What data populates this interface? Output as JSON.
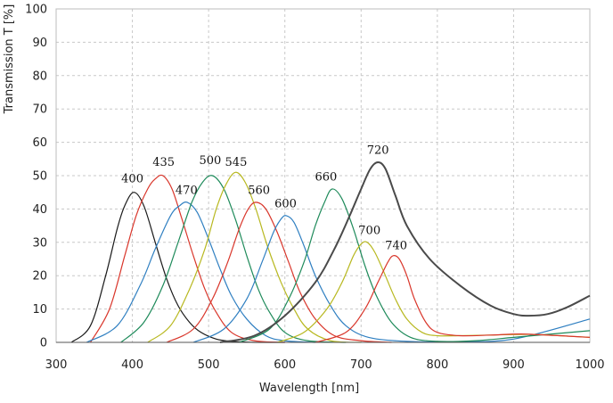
{
  "chart_data": {
    "type": "line",
    "title": "",
    "xlabel": "Wavelength [nm]",
    "ylabel": "Transmission T [%]",
    "xlim": [
      300,
      1000
    ],
    "ylim": [
      0,
      100
    ],
    "xticks": [
      300,
      400,
      500,
      600,
      700,
      800,
      900,
      1000
    ],
    "yticks": [
      0,
      10,
      20,
      30,
      40,
      50,
      60,
      70,
      80,
      90,
      100
    ],
    "grid": true,
    "legend": "none",
    "series": [
      {
        "name": "400",
        "color": "#1a1a1a",
        "width": 1.2,
        "x": [
          320,
          345,
          365,
          380,
          390,
          402,
          415,
          430,
          445,
          460,
          475,
          490,
          510,
          530,
          560,
          600
        ],
        "y": [
          0,
          5,
          20,
          34,
          41,
          45,
          41,
          30,
          19,
          11,
          6,
          3,
          1,
          0.3,
          0,
          0
        ]
      },
      {
        "name": "435",
        "color": "#d9362b",
        "width": 1.2,
        "x": [
          345,
          370,
          390,
          405,
          420,
          430,
          440,
          452,
          465,
          480,
          495,
          510,
          530,
          560,
          600
        ],
        "y": [
          0,
          10,
          26,
          38,
          46,
          49,
          50,
          46,
          37,
          26,
          16,
          9,
          3,
          0.5,
          0
        ]
      },
      {
        "name": "470",
        "color": "#2f7fc1",
        "width": 1.2,
        "x": [
          340,
          380,
          410,
          430,
          450,
          462,
          472,
          485,
          500,
          515,
          530,
          550,
          575,
          600,
          640
        ],
        "y": [
          0,
          5,
          17,
          28,
          38,
          41,
          42,
          39,
          31,
          22,
          14,
          7,
          2,
          0.5,
          0
        ]
      },
      {
        "name": "500",
        "color": "#1e8a5a",
        "width": 1.2,
        "x": [
          385,
          415,
          440,
          460,
          478,
          492,
          505,
          520,
          535,
          550,
          565,
          580,
          600,
          630,
          680
        ],
        "y": [
          0,
          6,
          17,
          30,
          42,
          48,
          50,
          46,
          37,
          26,
          16,
          9,
          3,
          0.5,
          0
        ]
      },
      {
        "name": "545",
        "color": "#b8b820",
        "width": 1.2,
        "x": [
          420,
          450,
          475,
          495,
          510,
          522,
          535,
          548,
          562,
          577,
          595,
          612,
          630,
          660,
          700
        ],
        "y": [
          0,
          5,
          16,
          28,
          40,
          47,
          51,
          48,
          40,
          29,
          18,
          10,
          4,
          0.5,
          0
        ]
      },
      {
        "name": "560",
        "color": "#d9362b",
        "width": 1.2,
        "x": [
          445,
          480,
          505,
          525,
          540,
          552,
          562,
          575,
          590,
          605,
          620,
          640,
          665,
          700,
          740
        ],
        "y": [
          0,
          4,
          13,
          24,
          34,
          40,
          42,
          40,
          33,
          24,
          15,
          7,
          2,
          0.5,
          0
        ]
      },
      {
        "name": "600",
        "color": "#2f7fc1",
        "width": 1.2,
        "x": [
          480,
          520,
          550,
          570,
          585,
          595,
          602,
          612,
          625,
          640,
          660,
          680,
          710,
          760,
          820,
          900,
          1000
        ],
        "y": [
          0,
          4,
          13,
          24,
          33,
          37,
          38,
          36,
          29,
          20,
          11,
          5,
          1.5,
          0.3,
          0.2,
          1,
          7
        ]
      },
      {
        "name": "660",
        "color": "#1e8a5a",
        "width": 1.2,
        "x": [
          540,
          580,
          605,
          625,
          640,
          652,
          662,
          675,
          690,
          705,
          720,
          740,
          765,
          800,
          850,
          900,
          950,
          1000
        ],
        "y": [
          0,
          4,
          13,
          24,
          35,
          42,
          46,
          43,
          34,
          23,
          14,
          6,
          1.5,
          0.3,
          0.5,
          1.5,
          2.5,
          3.5
        ]
      },
      {
        "name": "720",
        "color": "#4a4a4a",
        "width": 2,
        "x": [
          515,
          560,
          600,
          640,
          665,
          685,
          700,
          712,
          722,
          732,
          745,
          760,
          790,
          830,
          870,
          900,
          920,
          945,
          970,
          1000
        ],
        "y": [
          0,
          2,
          8,
          18,
          28,
          38,
          46,
          52,
          54,
          52,
          44,
          35,
          25,
          17,
          11,
          8.5,
          8,
          8.5,
          10.5,
          14
        ]
      },
      {
        "name": "700",
        "color": "#b8b820",
        "width": 1.2,
        "x": [
          590,
          625,
          655,
          675,
          690,
          700,
          708,
          718,
          730,
          745,
          760,
          780,
          800,
          830,
          870,
          920,
          960,
          1000
        ],
        "y": [
          0,
          3,
          10,
          18,
          26,
          29.5,
          30,
          27,
          21,
          13,
          7,
          3,
          2,
          2,
          2.2,
          2.4,
          2,
          1.5
        ]
      },
      {
        "name": "740",
        "color": "#d9362b",
        "width": 1.2,
        "x": [
          640,
          680,
          705,
          722,
          735,
          742,
          750,
          760,
          770,
          785,
          800,
          830,
          870,
          910,
          960,
          1000
        ],
        "y": [
          0,
          3,
          10,
          18,
          24,
          26,
          25,
          20,
          13,
          6,
          3,
          2,
          2.2,
          2.5,
          2,
          1.5
        ]
      }
    ],
    "annotations": [
      {
        "text": "400",
        "x": 400,
        "y": 48
      },
      {
        "text": "435",
        "x": 441,
        "y": 53
      },
      {
        "text": "470",
        "x": 471,
        "y": 44.5
      },
      {
        "text": "500",
        "x": 502,
        "y": 53.5
      },
      {
        "text": "545",
        "x": 536,
        "y": 53
      },
      {
        "text": "560",
        "x": 566,
        "y": 44.5
      },
      {
        "text": "600",
        "x": 601,
        "y": 40.5
      },
      {
        "text": "660",
        "x": 654,
        "y": 48.5
      },
      {
        "text": "720",
        "x": 722,
        "y": 56.5
      },
      {
        "text": "700",
        "x": 711,
        "y": 32.5
      },
      {
        "text": "740",
        "x": 746,
        "y": 28
      }
    ]
  }
}
